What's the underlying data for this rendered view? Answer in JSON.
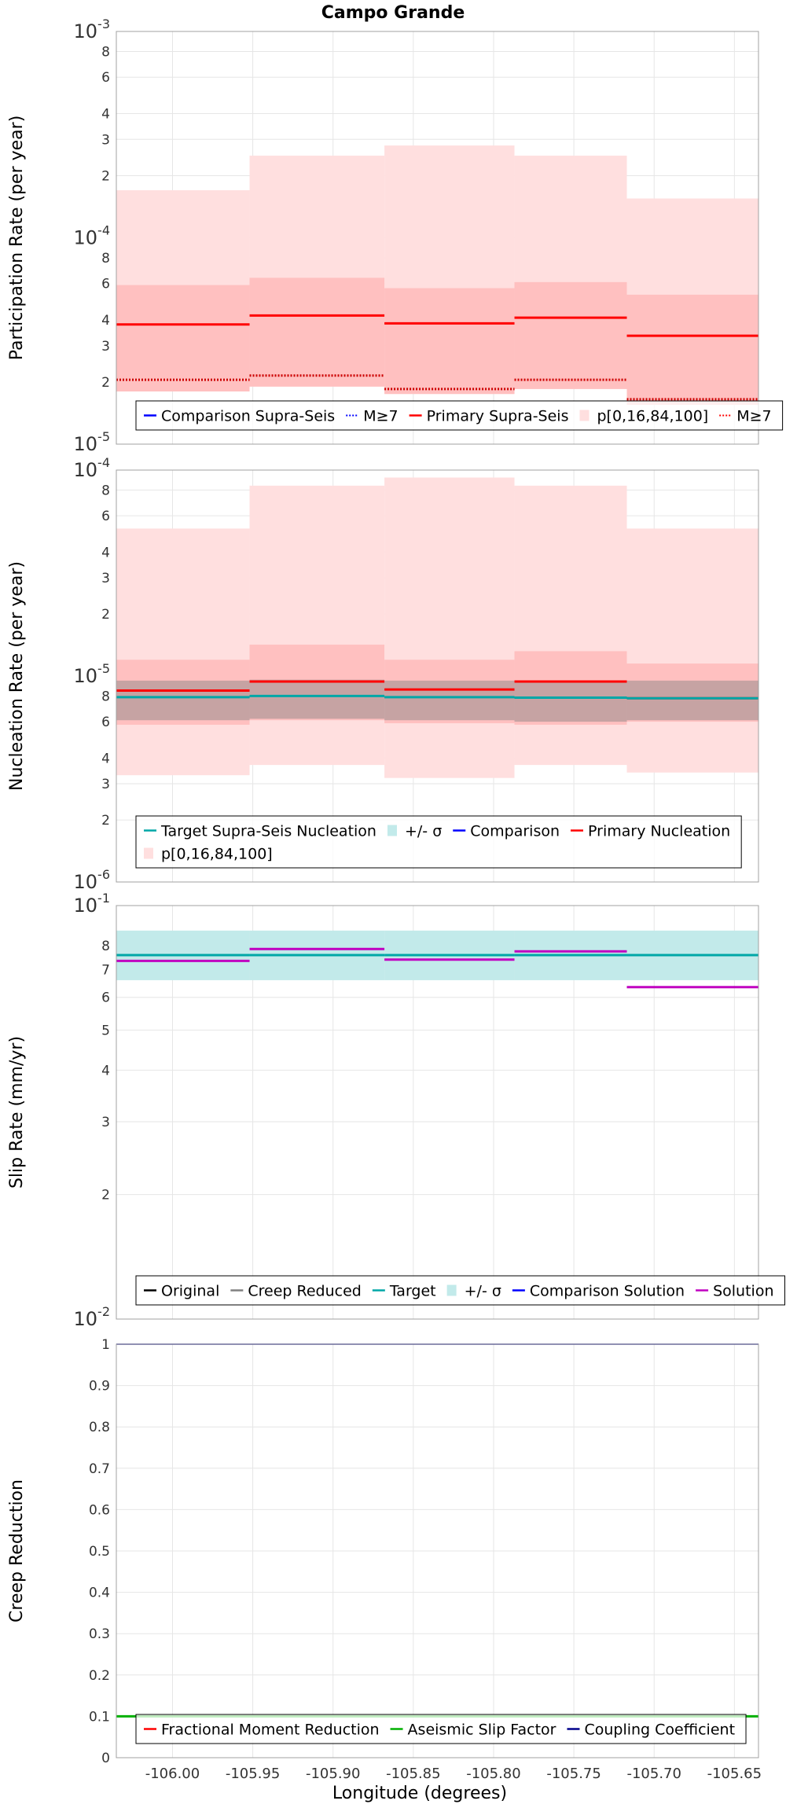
{
  "title": "Campo Grande",
  "xlabel": "Longitude (degrees)",
  "x_ticks": [
    "-106.00",
    "-105.95",
    "-105.90",
    "-105.85",
    "-105.80",
    "-105.75",
    "-105.70",
    "-105.65"
  ],
  "colors": {
    "red": "#ff0000",
    "blue": "#0000ff",
    "navy": "#00008b",
    "teal": "#00a7a7",
    "teal_band": "#c2eaea",
    "magenta": "#c000c0",
    "gray": "#808080",
    "black": "#000000",
    "green": "#00b000",
    "pink_light": "#ffdfdf",
    "pink_mid": "#ffc0c0"
  },
  "chart_data": [
    {
      "type": "line",
      "ylabel": "Participation Rate (per year)",
      "yscale": "log",
      "ylim": [
        1e-05,
        0.001
      ],
      "y_ticks": [
        "10-5",
        "2",
        "3",
        "4",
        "6",
        "8",
        "10-4",
        "2",
        "3",
        "4",
        "6",
        "8",
        "10-3"
      ],
      "x_edges": [
        -106.035,
        -105.952,
        -105.868,
        -105.787,
        -105.717,
        -105.635
      ],
      "series": [
        {
          "name": "Primary Supra-Seis p[0,16,84,100]",
          "kind": "band_outer",
          "lower": [
            1.8e-05,
            1.9e-05,
            1.75e-05,
            1.85e-05,
            1.55e-05
          ],
          "upper": [
            0.00017,
            0.00025,
            0.00028,
            0.00025,
            0.000155
          ]
        },
        {
          "name": "Primary Supra-Seis p[0,16,84,100]",
          "kind": "band_inner",
          "lower": [
            1.8e-05,
            1.9e-05,
            1.75e-05,
            1.85e-05,
            1.55e-05
          ],
          "upper": [
            5.9e-05,
            6.4e-05,
            5.7e-05,
            6.1e-05,
            5.3e-05
          ]
        },
        {
          "name": "Primary Supra-Seis",
          "kind": "step",
          "values": [
            3.8e-05,
            4.2e-05,
            3.85e-05,
            4.1e-05,
            3.35e-05
          ]
        },
        {
          "name": "M≥7",
          "kind": "step_dotted",
          "values": [
            2.05e-05,
            2.15e-05,
            1.85e-05,
            2.05e-05,
            1.65e-05
          ]
        }
      ],
      "legend": {
        "position": "bottom",
        "items": [
          {
            "label": "Comparison Supra-Seis",
            "kind": "line",
            "color": "#0000ff"
          },
          {
            "label": "M≥7",
            "kind": "dotted",
            "color": "#0000ff"
          },
          {
            "label": "Primary Supra-Seis",
            "kind": "line",
            "color": "#ff0000"
          },
          {
            "label": "p[0,16,84,100]",
            "kind": "band",
            "color": "#ffdfdf"
          },
          {
            "label": "M≥7",
            "kind": "dotted",
            "color": "#ff0000"
          }
        ]
      }
    },
    {
      "type": "line",
      "ylabel": "Nucleation Rate (per year)",
      "yscale": "log",
      "ylim": [
        1e-06,
        0.0001
      ],
      "y_ticks": [
        "10-6",
        "2",
        "3",
        "4",
        "6",
        "8",
        "10-5",
        "2",
        "3",
        "4",
        "6",
        "8",
        "10-4"
      ],
      "x_edges": [
        -106.035,
        -105.952,
        -105.868,
        -105.787,
        -105.717,
        -105.635
      ],
      "series": [
        {
          "name": "Primary Nucleation p[0,16,84,100]",
          "kind": "band_outer",
          "lower": [
            3.3e-06,
            3.7e-06,
            3.2e-06,
            3.7e-06,
            3.4e-06
          ],
          "upper": [
            5.2e-05,
            8.4e-05,
            9.2e-05,
            8.4e-05,
            5.2e-05
          ]
        },
        {
          "name": "Primary Nucleation p[0,16,84,100]",
          "kind": "band_inner",
          "lower": [
            5.8e-06,
            6.1e-06,
            5.9e-06,
            5.8e-06,
            6e-06
          ],
          "upper": [
            1.2e-05,
            1.42e-05,
            1.2e-05,
            1.32e-05,
            1.15e-05
          ]
        },
        {
          "name": "Target Supra-Seis Nucleation +/- σ",
          "kind": "band_gray",
          "lower": [
            6.1e-06,
            6.2e-06,
            6.1e-06,
            6e-06,
            6.1e-06
          ],
          "upper": [
            9.5e-06,
            9.6e-06,
            9.5e-06,
            9.4e-06,
            9.5e-06
          ]
        },
        {
          "name": "Primary Nucleation",
          "kind": "step",
          "values": [
            8.5e-06,
            9.4e-06,
            8.6e-06,
            9.4e-06,
            7.8e-06
          ]
        },
        {
          "name": "Target Supra-Seis Nucleation",
          "kind": "step",
          "values": [
            7.9e-06,
            8e-06,
            7.9e-06,
            7.85e-06,
            7.8e-06
          ]
        }
      ],
      "legend": {
        "position": "bottom",
        "items": [
          {
            "label": "Target Supra-Seis Nucleation",
            "kind": "line",
            "color": "#00a7a7"
          },
          {
            "label": "+/- σ",
            "kind": "band",
            "color": "#c2eaea"
          },
          {
            "label": "Comparison",
            "kind": "line",
            "color": "#0000ff"
          },
          {
            "label": "Primary Nucleation",
            "kind": "line",
            "color": "#ff0000"
          },
          {
            "label": "p[0,16,84,100]",
            "kind": "band",
            "color": "#ffdfdf"
          }
        ]
      }
    },
    {
      "type": "line",
      "ylabel": "Slip Rate (mm/yr)",
      "yscale": "log",
      "ylim": [
        0.01,
        0.1
      ],
      "y_ticks": [
        "10-2",
        "2",
        "3",
        "4",
        "5",
        "6",
        "7",
        "8",
        "10-1"
      ],
      "x_edges": [
        -106.035,
        -105.952,
        -105.868,
        -105.787,
        -105.717,
        -105.635
      ],
      "series": [
        {
          "name": "Target +/- σ",
          "kind": "band_teal",
          "lower": [
            0.066,
            0.066,
            0.066,
            0.066,
            0.066
          ],
          "upper": [
            0.087,
            0.087,
            0.087,
            0.087,
            0.087
          ]
        },
        {
          "name": "Target",
          "kind": "step",
          "values": [
            0.0759,
            0.0759,
            0.0759,
            0.0759,
            0.0759
          ]
        },
        {
          "name": "Solution",
          "kind": "step",
          "values": [
            0.0735,
            0.0785,
            0.074,
            0.0775,
            0.0635
          ]
        }
      ],
      "legend": {
        "position": "bottom",
        "items": [
          {
            "label": "Original",
            "kind": "line",
            "color": "#000000"
          },
          {
            "label": "Creep Reduced",
            "kind": "line",
            "color": "#808080"
          },
          {
            "label": "Target",
            "kind": "line",
            "color": "#00a7a7"
          },
          {
            "label": "+/- σ",
            "kind": "band",
            "color": "#c2eaea"
          },
          {
            "label": "Comparison Solution",
            "kind": "line",
            "color": "#0000ff"
          },
          {
            "label": "Solution",
            "kind": "line",
            "color": "#c000c0"
          }
        ]
      }
    },
    {
      "type": "line",
      "ylabel": "Creep Reduction",
      "yscale": "linear",
      "ylim": [
        0,
        1
      ],
      "y_ticks": [
        "0",
        "0.1",
        "0.2",
        "0.3",
        "0.4",
        "0.5",
        "0.6",
        "0.7",
        "0.8",
        "0.9",
        "1"
      ],
      "x_edges": [
        -106.035,
        -105.635
      ],
      "series": [
        {
          "name": "Coupling Coefficient",
          "kind": "flat",
          "values": [
            1.0
          ]
        },
        {
          "name": "Aseismic Slip Factor",
          "kind": "flat",
          "values": [
            0.1
          ]
        }
      ],
      "legend": {
        "position": "bottom",
        "items": [
          {
            "label": "Fractional Moment Reduction",
            "kind": "line",
            "color": "#ff0000"
          },
          {
            "label": "Aseismic Slip Factor",
            "kind": "line",
            "color": "#00b000"
          },
          {
            "label": "Coupling Coefficient",
            "kind": "line",
            "color": "#00008b"
          }
        ]
      }
    }
  ]
}
